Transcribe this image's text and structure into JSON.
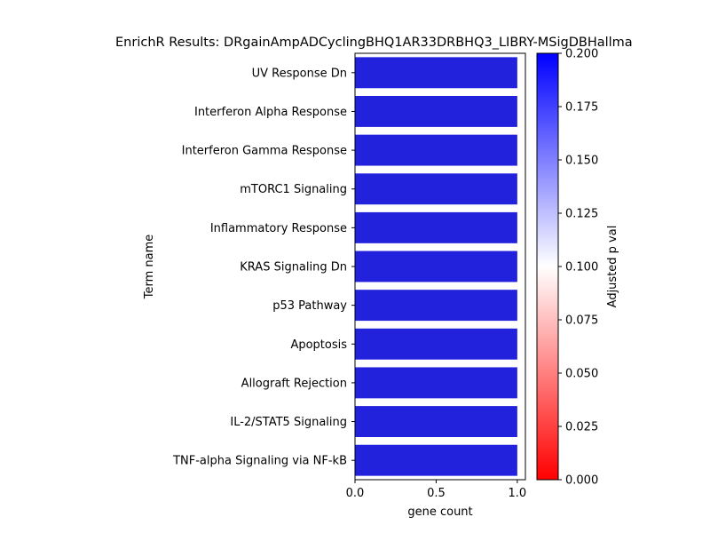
{
  "chart_data": {
    "type": "bar",
    "orientation": "horizontal",
    "title": "EnrichR Results: DRgainAmpADCyclingBHQ1AR33DRBHQ3_LIBRY-MSigDBHallma",
    "xlabel": "gene count",
    "ylabel": "Term name",
    "xlim": [
      0,
      1.05
    ],
    "xticks": [
      "0.0",
      "0.5",
      "1.0"
    ],
    "xtick_values": [
      0,
      0.5,
      1.0
    ],
    "categories": [
      "UV Response Dn",
      "Interferon Alpha Response",
      "Interferon Gamma Response",
      "mTORC1 Signaling",
      "Inflammatory Response",
      "KRAS Signaling Dn",
      "p53 Pathway",
      "Apoptosis",
      "Allograft Rejection",
      "IL-2/STAT5 Signaling",
      "TNF-alpha Signaling via NF-kB"
    ],
    "values": [
      1,
      1,
      1,
      1,
      1,
      1,
      1,
      1,
      1,
      1,
      1
    ],
    "bar_color": "#2222dd",
    "colorbar": {
      "label": "Adjusted p val",
      "range": [
        0,
        0.2
      ],
      "ticks": [
        "0.000",
        "0.025",
        "0.050",
        "0.075",
        "0.100",
        "0.125",
        "0.150",
        "0.175",
        "0.200"
      ],
      "tick_values": [
        0,
        0.025,
        0.05,
        0.075,
        0.1,
        0.125,
        0.15,
        0.175,
        0.2
      ],
      "colormap": [
        "#ff0000",
        "#ffffff",
        "#0000ff"
      ]
    }
  }
}
